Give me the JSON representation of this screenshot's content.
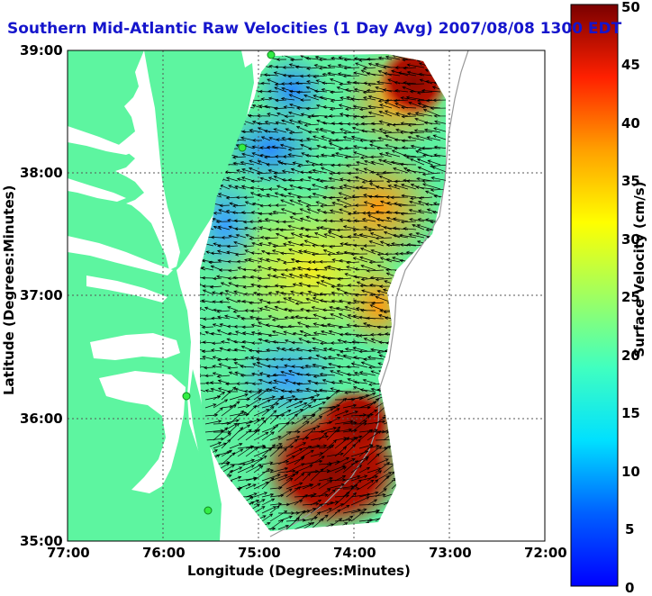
{
  "title": "Southern Mid-Atlantic Raw Velocities (1 Day Avg) 2007/08/08 1300 EDT",
  "x_axis": {
    "label": "Longitude (Degrees:Minutes)",
    "ticks": [
      "77:00",
      "76:00",
      "75:00",
      "74:00",
      "73:00",
      "72:00"
    ]
  },
  "y_axis": {
    "label": "Latitude (Degrees:Minutes)",
    "ticks": [
      "39:00",
      "38:00",
      "37:00",
      "36:00",
      "35:00"
    ]
  },
  "colorbar": {
    "label": "Surface Velocity (cm/s)",
    "ticks": [
      "50",
      "45",
      "40",
      "35",
      "30",
      "25",
      "20",
      "15",
      "10",
      "5",
      "0"
    ],
    "min": 0,
    "max": 50,
    "colormap": "jet"
  },
  "map": {
    "lon_range": [
      -77,
      -72
    ],
    "lat_range": [
      35,
      39
    ],
    "land_color": "#5df5a0",
    "ocean_color": "#ffffff",
    "grid": "dotted",
    "station_color": "#33ee44",
    "vector_color": "#000000",
    "shading": "interpolated surface current speed"
  }
}
